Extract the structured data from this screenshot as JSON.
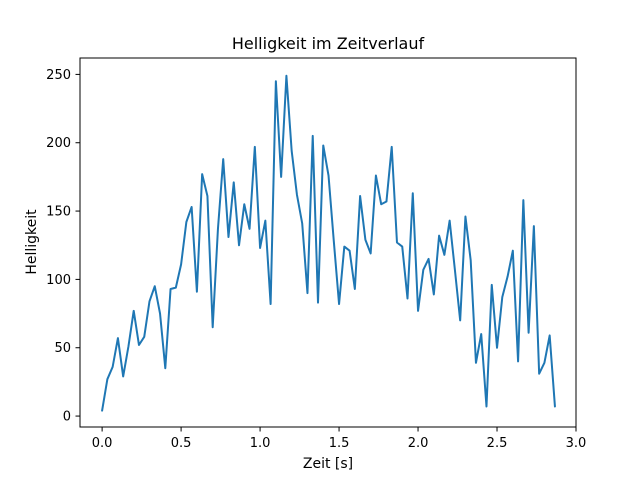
{
  "chart_data": {
    "type": "line",
    "title": "Helligkeit im Zeitverlauf",
    "xlabel": "Zeit [s]",
    "ylabel": "Helligkeit",
    "xlim": [
      -0.14,
      3.0
    ],
    "ylim": [
      -8,
      262
    ],
    "grid": false,
    "x_ticks": [
      0.0,
      0.5,
      1.0,
      1.5,
      2.0,
      2.5,
      3.0
    ],
    "x_tick_labels": [
      "0.0",
      "0.5",
      "1.0",
      "1.5",
      "2.0",
      "2.5",
      "3.0"
    ],
    "y_ticks": [
      0,
      50,
      100,
      150,
      200,
      250
    ],
    "y_tick_labels": [
      "0",
      "50",
      "100",
      "150",
      "200",
      "250"
    ],
    "line_color": "#1f77b4",
    "series": [
      {
        "name": "Helligkeit",
        "x": [
          0.0,
          0.0333,
          0.0667,
          0.1,
          0.1333,
          0.1667,
          0.2,
          0.2333,
          0.2667,
          0.3,
          0.3333,
          0.3667,
          0.4,
          0.4333,
          0.4667,
          0.5,
          0.5333,
          0.5667,
          0.6,
          0.6333,
          0.6667,
          0.7,
          0.7333,
          0.7667,
          0.8,
          0.8333,
          0.8667,
          0.9,
          0.9333,
          0.9667,
          1.0,
          1.0333,
          1.0667,
          1.1,
          1.1333,
          1.1667,
          1.2,
          1.2333,
          1.2667,
          1.3,
          1.3333,
          1.3667,
          1.4,
          1.4333,
          1.4667,
          1.5,
          1.5333,
          1.5667,
          1.6,
          1.6333,
          1.6667,
          1.7,
          1.7333,
          1.7667,
          1.8,
          1.8333,
          1.8667,
          1.9,
          1.9333,
          1.9667,
          2.0,
          2.0333,
          2.0667,
          2.1,
          2.1333,
          2.1667,
          2.2,
          2.2333,
          2.2667,
          2.3,
          2.3333,
          2.3667,
          2.4,
          2.4333,
          2.4667,
          2.5,
          2.5333,
          2.5667,
          2.6,
          2.6333,
          2.6667,
          2.7,
          2.7333,
          2.7667,
          2.8,
          2.8333,
          2.8667
        ],
        "y": [
          4,
          27,
          36,
          57,
          29,
          51,
          77,
          52,
          58,
          84,
          95,
          75,
          35,
          93,
          94,
          111,
          142,
          153,
          91,
          177,
          161,
          65,
          137,
          188,
          131,
          171,
          125,
          155,
          137,
          197,
          123,
          143,
          82,
          245,
          175,
          249,
          194,
          162,
          141,
          90,
          205,
          83,
          198,
          176,
          128,
          82,
          124,
          121,
          93,
          161,
          129,
          119,
          176,
          155,
          157,
          197,
          127,
          124,
          86,
          163,
          77,
          107,
          115,
          89,
          132,
          118,
          143,
          107,
          70,
          146,
          114,
          39,
          60,
          7,
          96,
          50,
          87,
          102,
          121,
          40,
          158,
          61,
          139,
          31,
          39,
          59,
          7
        ]
      }
    ]
  }
}
